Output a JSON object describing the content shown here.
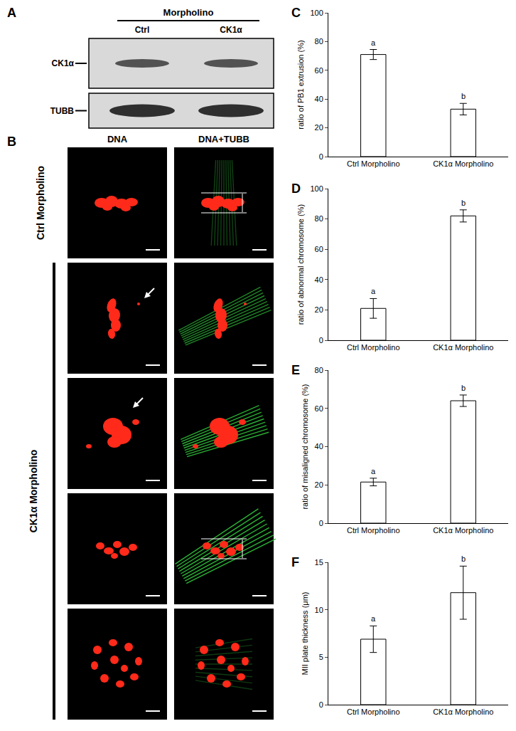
{
  "panels": {
    "A": {
      "label": "A",
      "header": "Morpholino",
      "lanes": [
        "Ctrl",
        "CK1α"
      ],
      "rows": [
        "CK1α",
        "TUBB"
      ]
    },
    "B": {
      "label": "B",
      "columns": [
        "DNA",
        "DNA+TUBB"
      ],
      "groups": [
        {
          "name": "Ctrl Morpholino",
          "rows": 1
        },
        {
          "name": "CK1α Morpholino",
          "rows": 4
        }
      ]
    }
  },
  "chart_data": [
    {
      "type": "bar",
      "title": "C",
      "categories": [
        "Ctrl Morpholino",
        "CK1α Morpholino"
      ],
      "values": [
        71,
        33
      ],
      "errors": [
        3.5,
        4
      ],
      "color": "#ffffff",
      "y_label": "ratio of PB1 extrusion (%)",
      "ylim": [
        0,
        100
      ],
      "yticks": [
        0,
        20,
        40,
        60,
        80,
        100
      ],
      "grid": false,
      "annotations": [
        "a",
        "b"
      ]
    },
    {
      "type": "bar",
      "title": "D",
      "categories": [
        "Ctrl Morpholino",
        "CK1α Morpholino"
      ],
      "values": [
        21,
        82
      ],
      "errors": [
        6.5,
        4
      ],
      "color": "#ffffff",
      "y_label": "ratio of abnormal chromosome (%)",
      "ylim": [
        0,
        100
      ],
      "yticks": [
        0,
        20,
        40,
        60,
        80,
        100
      ],
      "grid": false,
      "annotations": [
        "a",
        "b"
      ]
    },
    {
      "type": "bar",
      "title": "E",
      "categories": [
        "Ctrl Morpholino",
        "CK1α Morpholino"
      ],
      "values": [
        21.5,
        64
      ],
      "errors": [
        2,
        3
      ],
      "color": "#ffffff",
      "y_label": "ratio of misaligned chromosome (%)",
      "ylim": [
        0,
        80
      ],
      "yticks": [
        0,
        20,
        40,
        60,
        80
      ],
      "grid": false,
      "annotations": [
        "a",
        "b"
      ]
    },
    {
      "type": "bar",
      "title": "F",
      "categories": [
        "Ctrl Morpholino",
        "CK1α Morpholino"
      ],
      "values": [
        6.9,
        11.8
      ],
      "errors": [
        1.4,
        2.8
      ],
      "color": "#ffffff",
      "y_label": "MII plate thickness (μm)",
      "ylim": [
        0,
        15
      ],
      "yticks": [
        0,
        5,
        10,
        15
      ],
      "grid": false,
      "annotations": [
        "a",
        "b"
      ]
    }
  ]
}
